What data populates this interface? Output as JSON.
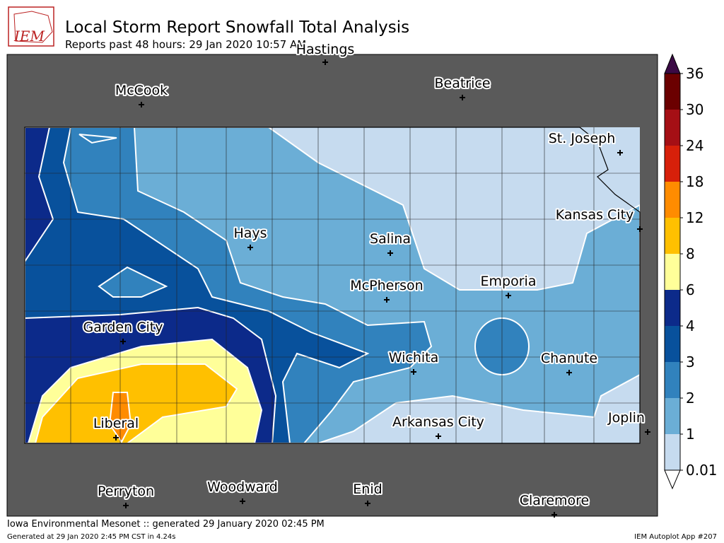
{
  "header": {
    "logo": "IEM",
    "title": "Local Storm Report Snowfall Total Analysis",
    "subtitle": "Reports past 48 hours: 29 Jan 2020 10:57 AM"
  },
  "cities": [
    "Hastings",
    "McCook",
    "Beatrice",
    "St. Joseph",
    "Kansas City",
    "Hays",
    "Salina",
    "McPherson",
    "Emporia",
    "Garden City",
    "Wichita",
    "Chanute",
    "Liberal",
    "Arkansas City",
    "Joplin",
    "Perryton",
    "Woodward",
    "Enid",
    "Claremore"
  ],
  "colorbar": {
    "ticks": [
      0.01,
      1,
      2,
      3,
      4,
      6,
      8,
      12,
      18,
      24,
      30,
      36
    ],
    "colors": [
      "#c6dbef",
      "#6baed6",
      "#3182bd",
      "#08519c",
      "#0c2a8a",
      "#ffff99",
      "#ffc000",
      "#ff8c00",
      "#d7200a",
      "#a50f15",
      "#6b0000"
    ],
    "over_color": "#3b0a45",
    "under_color": "#ffffff"
  },
  "footer": {
    "left": "Iowa Environmental Mesonet :: generated 29 January 2020 02:45 PM",
    "small": "Generated at 29 Jan 2020 2:45 PM CST in 4.24s",
    "right": "IEM Autoplot App #207"
  }
}
